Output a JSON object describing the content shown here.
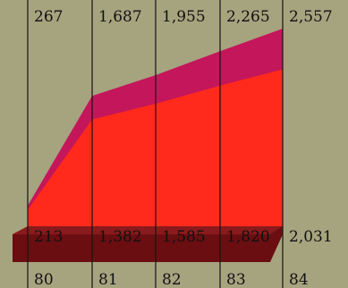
{
  "chart_data": {
    "type": "area",
    "x": [
      "80",
      "81",
      "82",
      "83",
      "84"
    ],
    "series": [
      {
        "values": [
          267,
          1687,
          1955,
          2265,
          2557
        ]
      },
      {
        "values": [
          213,
          1382,
          1585,
          1820,
          2031
        ]
      }
    ],
    "top_labels": [
      "267",
      "1,687",
      "1,955",
      "2,265",
      "2,557"
    ],
    "inner_labels": [
      "213",
      "1,382",
      "1,585",
      "1,820",
      "2,031"
    ],
    "x_labels": [
      "80",
      "81",
      "82",
      "83",
      "84"
    ],
    "colors": {
      "background": "#a6a37f",
      "upper_band": "#c4165a",
      "lower_area": "#ff2a1c",
      "base_shadow": "#6a0e12",
      "base_shadow_light": "#8a1a1c",
      "gridline": "#141414",
      "text": "#111111"
    },
    "grid": true
  }
}
